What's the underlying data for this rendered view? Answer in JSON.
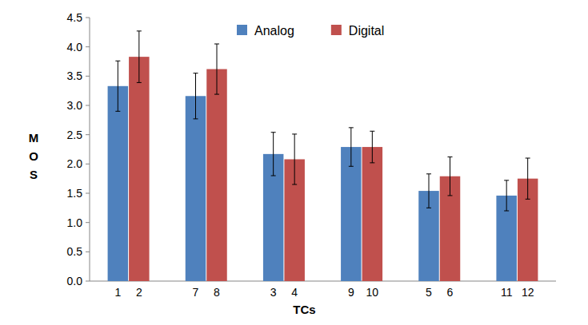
{
  "chart_data": {
    "type": "bar",
    "x_label": "TCs",
    "y_label": "MOS",
    "categories": [
      null,
      null,
      null,
      null,
      null,
      null
    ],
    "series": [
      {
        "name": "Analog",
        "color": "#4f81bd",
        "labels": [
          "1",
          "7",
          "3",
          "9",
          "5",
          "11"
        ],
        "values": [
          3.33,
          3.16,
          2.17,
          2.29,
          1.54,
          1.46
        ],
        "errors": [
          0.43,
          0.39,
          0.37,
          0.33,
          0.29,
          0.26
        ]
      },
      {
        "name": "Digital",
        "color": "#c0504d",
        "labels": [
          "2",
          "8",
          "4",
          "10",
          "6",
          "12"
        ],
        "values": [
          3.83,
          3.62,
          2.08,
          2.29,
          1.79,
          1.75
        ],
        "errors": [
          0.44,
          0.43,
          0.43,
          0.27,
          0.33,
          0.35
        ]
      }
    ],
    "ylim": [
      0,
      4.5
    ],
    "yticks": [
      {
        "value": 0,
        "label": "0.0"
      },
      {
        "value": 0.5,
        "label": "0.5"
      },
      {
        "value": 1,
        "label": "1.0"
      },
      {
        "value": 1.5,
        "label": "1.5"
      },
      {
        "value": 2,
        "label": "2.0"
      },
      {
        "value": 2.5,
        "label": "2.5"
      },
      {
        "value": 3,
        "label": "3.0"
      },
      {
        "value": 3.5,
        "label": "3.5"
      },
      {
        "value": 4,
        "label": "4.0"
      },
      {
        "value": 4.5,
        "label": "4.5"
      }
    ],
    "grid": false,
    "legend": "top"
  }
}
